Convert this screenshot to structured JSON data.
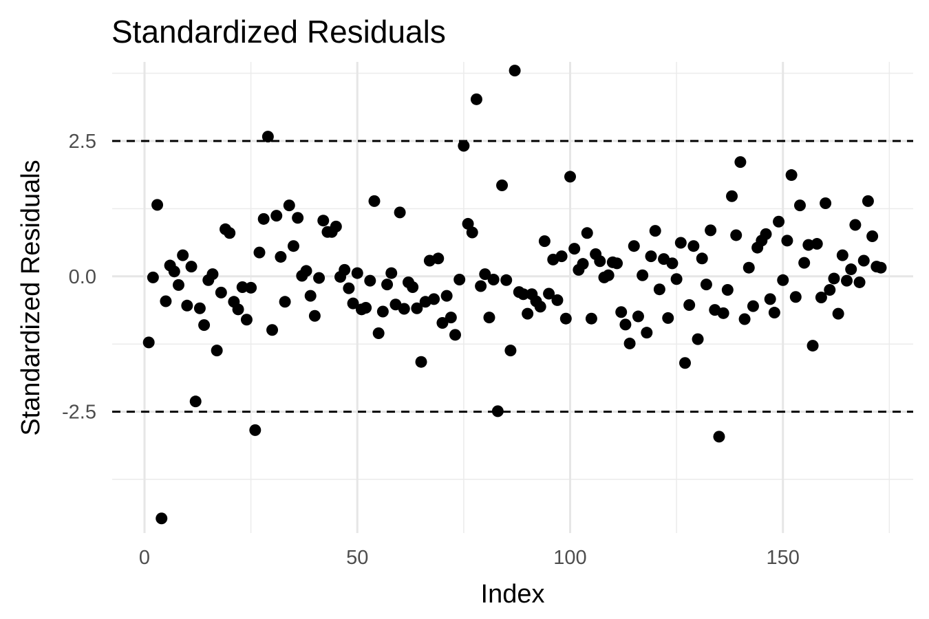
{
  "chart_data": {
    "type": "scatter",
    "title": "Standardized Residuals",
    "xlabel": "Index",
    "ylabel": "Standardized Residuals",
    "xlim": [
      -7.6,
      180.6
    ],
    "ylim": [
      -4.74,
      3.96
    ],
    "x_ticks": [
      0,
      50,
      100,
      150
    ],
    "x_tick_labels": [
      "0",
      "50",
      "100",
      "150"
    ],
    "y_ticks": [
      -2.5,
      0,
      2.5
    ],
    "y_tick_labels": [
      "-2.5",
      "0.0",
      "2.5"
    ],
    "reference_lines": [
      2.5,
      -2.5
    ],
    "grid": true,
    "legend": "none",
    "point_color": "#000000",
    "x": [
      1,
      2,
      3,
      4,
      5,
      6,
      7,
      8,
      9,
      10,
      11,
      12,
      13,
      14,
      15,
      16,
      17,
      18,
      19,
      20,
      21,
      22,
      23,
      24,
      25,
      26,
      27,
      28,
      29,
      30,
      31,
      32,
      33,
      34,
      35,
      36,
      37,
      38,
      39,
      40,
      41,
      42,
      43,
      44,
      45,
      46,
      47,
      48,
      49,
      50,
      51,
      52,
      53,
      54,
      55,
      56,
      57,
      58,
      59,
      60,
      61,
      62,
      63,
      64,
      65,
      66,
      67,
      68,
      69,
      70,
      71,
      72,
      73,
      74,
      75,
      76,
      77,
      78,
      79,
      80,
      81,
      82,
      83,
      84,
      85,
      86,
      87,
      88,
      89,
      90,
      91,
      92,
      93,
      94,
      95,
      96,
      97,
      98,
      99,
      100,
      101,
      102,
      103,
      104,
      105,
      106,
      107,
      108,
      109,
      110,
      111,
      112,
      113,
      114,
      115,
      116,
      117,
      118,
      119,
      120,
      121,
      122,
      123,
      124,
      125,
      126,
      127,
      128,
      129,
      130,
      131,
      132,
      133,
      134,
      135,
      136,
      137,
      138,
      139,
      140,
      141,
      142,
      143,
      144,
      145,
      146,
      147,
      148,
      149,
      150,
      151,
      152,
      153,
      154,
      155,
      156,
      157,
      158,
      159,
      160,
      161,
      162,
      163,
      164,
      165,
      166,
      167,
      168,
      169,
      170,
      171,
      172,
      173
    ],
    "y": [
      -1.22,
      -0.02,
      1.32,
      -4.47,
      -0.46,
      0.2,
      0.09,
      -0.16,
      0.39,
      -0.54,
      0.18,
      -2.31,
      -0.59,
      -0.9,
      -0.07,
      0.04,
      -1.37,
      -0.3,
      0.87,
      0.8,
      -0.47,
      -0.61,
      -0.2,
      -0.8,
      -0.21,
      -2.84,
      0.44,
      1.06,
      2.58,
      -0.99,
      1.12,
      0.36,
      -0.47,
      1.31,
      0.56,
      1.08,
      0.01,
      0.1,
      -0.36,
      -0.73,
      -0.03,
      1.03,
      0.82,
      0.82,
      0.92,
      -0.01,
      0.12,
      -0.22,
      -0.5,
      0.06,
      -0.61,
      -0.58,
      -0.08,
      1.39,
      -1.05,
      -0.65,
      -0.15,
      0.06,
      -0.52,
      1.18,
      -0.6,
      -0.11,
      -0.2,
      -0.59,
      -1.58,
      -0.47,
      0.29,
      -0.42,
      0.33,
      -0.86,
      -0.36,
      -0.76,
      -1.08,
      -0.06,
      2.41,
      0.97,
      0.81,
      3.27,
      -0.18,
      0.04,
      -0.76,
      -0.06,
      -2.49,
      1.68,
      -0.07,
      -1.37,
      3.8,
      -0.29,
      -0.33,
      -0.69,
      -0.33,
      -0.46,
      -0.56,
      0.65,
      -0.32,
      0.31,
      -0.44,
      0.37,
      -0.78,
      1.84,
      0.51,
      0.12,
      0.23,
      0.8,
      -0.78,
      0.41,
      0.28,
      -0.02,
      0.02,
      0.26,
      0.24,
      -0.66,
      -0.89,
      -1.24,
      0.56,
      -0.74,
      0.02,
      -1.04,
      0.37,
      0.84,
      -0.24,
      0.32,
      -0.77,
      0.24,
      -0.05,
      0.62,
      -1.6,
      -0.53,
      0.56,
      -1.16,
      0.33,
      -0.15,
      0.85,
      -0.62,
      -2.96,
      -0.68,
      -0.25,
      1.48,
      0.76,
      2.11,
      -0.79,
      0.16,
      -0.55,
      0.53,
      0.66,
      0.78,
      -0.42,
      -0.67,
      1.01,
      -0.07,
      0.66,
      1.87,
      -0.38,
      1.31,
      0.25,
      0.58,
      -1.28,
      0.6,
      -0.39,
      1.35,
      -0.25,
      -0.04,
      -0.69,
      0.39,
      -0.08,
      0.13,
      0.95,
      -0.11,
      0.29,
      1.39,
      0.74,
      0.18,
      0.16
    ]
  }
}
